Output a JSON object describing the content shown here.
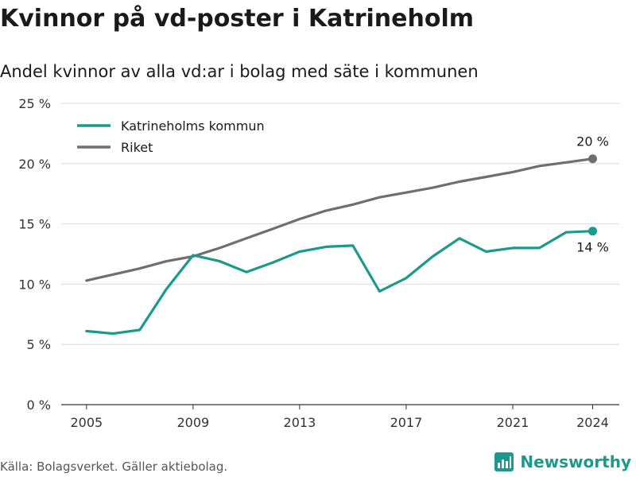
{
  "header": {
    "title": "Kvinnor på vd-poster i Katrineholm",
    "subtitle": "Andel kvinnor av alla vd:ar i bolag med säte i kommunen"
  },
  "footer": {
    "source": "Källa: Bolagsverket. Gäller aktiebolag.",
    "brand": "Newsworthy"
  },
  "colors": {
    "kommun": "#1a9a8c",
    "riket": "#6f6f6f",
    "grid": "#dddddd",
    "brand": "#1a9a8c"
  },
  "chart_data": {
    "type": "line",
    "title": "Kvinnor på vd-poster i Katrineholm",
    "subtitle": "Andel kvinnor av alla vd:ar i bolag med säte i kommunen",
    "x": [
      2005,
      2006,
      2007,
      2008,
      2009,
      2010,
      2011,
      2012,
      2013,
      2014,
      2015,
      2016,
      2017,
      2018,
      2019,
      2020,
      2021,
      2022,
      2023,
      2024
    ],
    "series": [
      {
        "name": "Katrineholms kommun",
        "values": [
          6.1,
          5.9,
          6.2,
          9.6,
          12.4,
          11.9,
          11.0,
          11.8,
          12.7,
          13.1,
          13.2,
          9.4,
          10.5,
          12.3,
          13.8,
          12.7,
          13.0,
          13.0,
          14.3,
          14.4
        ],
        "end_label": "14 %"
      },
      {
        "name": "Riket",
        "values": [
          10.3,
          10.8,
          11.3,
          11.9,
          12.3,
          13.0,
          13.8,
          14.6,
          15.4,
          16.1,
          16.6,
          17.2,
          17.6,
          18.0,
          18.5,
          18.9,
          19.3,
          19.8,
          20.1,
          20.4
        ],
        "end_label": "20 %"
      }
    ],
    "xticks": [
      2005,
      2009,
      2013,
      2017,
      2021,
      2024
    ],
    "yticks": [
      0,
      5,
      10,
      15,
      20,
      25
    ],
    "ytick_labels": [
      "0 %",
      "5 %",
      "10 %",
      "15 %",
      "20 %",
      "25 %"
    ],
    "ylim": [
      0,
      25
    ],
    "xlim": [
      2004.05,
      2025
    ],
    "grid": true,
    "legend_position": "top-left"
  }
}
